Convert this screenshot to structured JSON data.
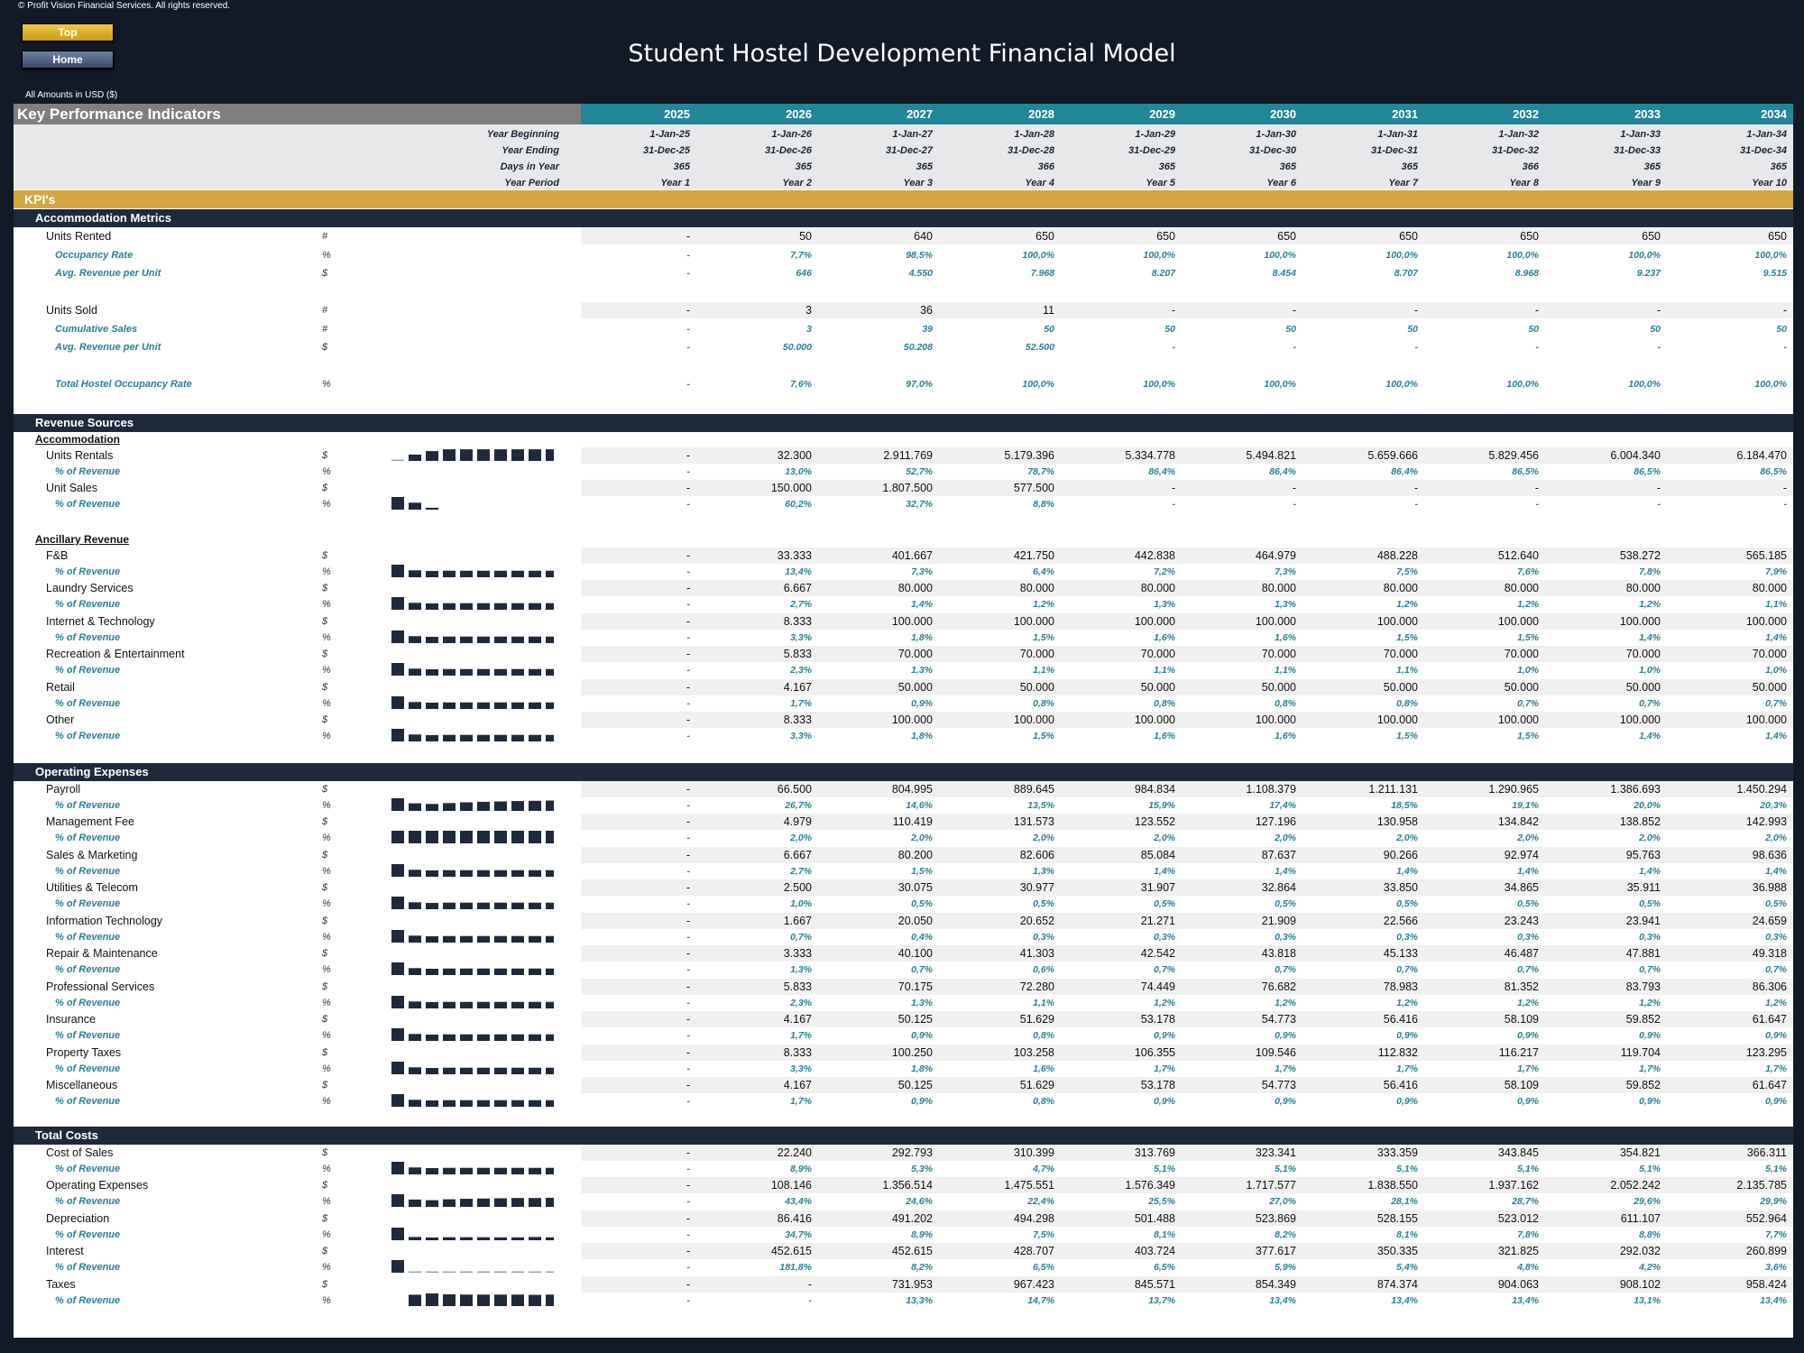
{
  "copyright": "© Profit Vision Financial Services. All rights reserved.",
  "nav": {
    "top_label": "Top",
    "home_label": "Home"
  },
  "title": "Student Hostel Development Financial Model",
  "amounts_note": "All Amounts in  USD ($)",
  "header": {
    "title": "Key Performance Indicators",
    "years": [
      "2025",
      "2026",
      "2027",
      "2028",
      "2029",
      "2030",
      "2031",
      "2032",
      "2033",
      "2034"
    ]
  },
  "info_rows": [
    {
      "label": "Year Beginning",
      "values": [
        "1-Jan-25",
        "1-Jan-26",
        "1-Jan-27",
        "1-Jan-28",
        "1-Jan-29",
        "1-Jan-30",
        "1-Jan-31",
        "1-Jan-32",
        "1-Jan-33",
        "1-Jan-34"
      ]
    },
    {
      "label": "Year Ending",
      "values": [
        "31-Dec-25",
        "31-Dec-26",
        "31-Dec-27",
        "31-Dec-28",
        "31-Dec-29",
        "31-Dec-30",
        "31-Dec-31",
        "31-Dec-32",
        "31-Dec-33",
        "31-Dec-34"
      ]
    },
    {
      "label": "Days in Year",
      "values": [
        "365",
        "365",
        "365",
        "366",
        "365",
        "365",
        "365",
        "366",
        "365",
        "365"
      ]
    },
    {
      "label": "Year Period",
      "values": [
        "Year 1",
        "Year 2",
        "Year 3",
        "Year 4",
        "Year 5",
        "Year 6",
        "Year 7",
        "Year 8",
        "Year 9",
        "Year 10"
      ]
    }
  ],
  "kpi_band": "KPI's",
  "items": [
    {
      "kind": "section",
      "top": 232,
      "text": "Accommodation Metrics"
    },
    {
      "kind": "main",
      "top": 253,
      "label": "Units Rented",
      "unit": "#",
      "values": [
        "-",
        "50",
        "640",
        "650",
        "650",
        "650",
        "650",
        "650",
        "650",
        "650"
      ]
    },
    {
      "kind": "sub",
      "top": 274,
      "label": "Occupancy Rate",
      "unit": "%",
      "values": [
        "-",
        "7,7%",
        "98,5%",
        "100,0%",
        "100,0%",
        "100,0%",
        "100,0%",
        "100,0%",
        "100,0%",
        "100,0%"
      ]
    },
    {
      "kind": "sub",
      "top": 294,
      "label": "Avg. Revenue per Unit",
      "unit": "$",
      "values": [
        "-",
        "646",
        "4.550",
        "7.968",
        "8.207",
        "8.454",
        "8.707",
        "8.968",
        "9.237",
        "9.515"
      ]
    },
    {
      "kind": "main",
      "top": 335,
      "label": "Units Sold",
      "unit": "#",
      "values": [
        "-",
        "3",
        "36",
        "11",
        "-",
        "-",
        "-",
        "-",
        "-",
        "-"
      ]
    },
    {
      "kind": "sub",
      "top": 356,
      "label": "Cumulative Sales",
      "unit": "#",
      "values": [
        "-",
        "3",
        "39",
        "50",
        "50",
        "50",
        "50",
        "50",
        "50",
        "50"
      ]
    },
    {
      "kind": "sub",
      "top": 376,
      "label": "Avg. Revenue per Unit",
      "unit": "$",
      "values": [
        "-",
        "50.000",
        "50.208",
        "52.500",
        "-",
        "-",
        "-",
        "-",
        "-",
        "-"
      ]
    },
    {
      "kind": "sub",
      "top": 417,
      "label": "Total Hostel Occupancy Rate",
      "unit": "%",
      "values": [
        "-",
        "7,6%",
        "97,0%",
        "100,0%",
        "100,0%",
        "100,0%",
        "100,0%",
        "100,0%",
        "100,0%",
        "100,0%"
      ]
    },
    {
      "kind": "section",
      "top": 459,
      "text": "Revenue Sources"
    },
    {
      "kind": "subtitle",
      "top": 479,
      "text": "Accommodation"
    },
    {
      "kind": "main",
      "top": 496,
      "label": "Units Rentals",
      "unit": "$",
      "spark": "b0",
      "values": [
        "-",
        "32.300",
        "2.911.769",
        "5.179.396",
        "5.334.778",
        "5.494.821",
        "5.659.666",
        "5.829.456",
        "6.004.340",
        "6.184.470"
      ]
    },
    {
      "kind": "sub",
      "top": 514,
      "label": "% of Revenue",
      "unit": "%",
      "values": [
        "-",
        "13,0%",
        "52,7%",
        "78,7%",
        "86,4%",
        "86,4%",
        "86,4%",
        "86,5%",
        "86,5%",
        "86,5%"
      ]
    },
    {
      "kind": "main",
      "top": 532,
      "label": "Unit Sales",
      "unit": "$",
      "values": [
        "-",
        "150.000",
        "1.807.500",
        "577.500",
        "-",
        "-",
        "-",
        "-",
        "-",
        "-"
      ]
    },
    {
      "kind": "sub",
      "top": 550,
      "label": "% of Revenue",
      "unit": "%",
      "spark": "b1",
      "values": [
        "-",
        "60,2%",
        "32,7%",
        "8,8%",
        "-",
        "-",
        "-",
        "-",
        "-",
        "-"
      ]
    },
    {
      "kind": "subtitle",
      "top": 590,
      "text": "Ancillary Revenue"
    },
    {
      "kind": "main",
      "top": 607,
      "label": "F&B",
      "unit": "$",
      "values": [
        "-",
        "33.333",
        "401.667",
        "421.750",
        "442.838",
        "464.979",
        "488.228",
        "512.640",
        "538.272",
        "565.185"
      ]
    },
    {
      "kind": "sub",
      "top": 625,
      "label": "% of Revenue",
      "unit": "%",
      "spark": "b2",
      "values": [
        "-",
        "13,4%",
        "7,3%",
        "6,4%",
        "7,2%",
        "7,3%",
        "7,5%",
        "7,6%",
        "7,8%",
        "7,9%"
      ]
    },
    {
      "kind": "main",
      "top": 643,
      "label": "Laundry Services",
      "unit": "$",
      "values": [
        "-",
        "6.667",
        "80.000",
        "80.000",
        "80.000",
        "80.000",
        "80.000",
        "80.000",
        "80.000",
        "80.000"
      ]
    },
    {
      "kind": "sub",
      "top": 661,
      "label": "% of Revenue",
      "unit": "%",
      "spark": "b2",
      "values": [
        "-",
        "2,7%",
        "1,4%",
        "1,2%",
        "1,3%",
        "1,3%",
        "1,2%",
        "1,2%",
        "1,2%",
        "1,1%"
      ]
    },
    {
      "kind": "main",
      "top": 680,
      "label": "Internet & Technology",
      "unit": "$",
      "values": [
        "-",
        "8.333",
        "100.000",
        "100.000",
        "100.000",
        "100.000",
        "100.000",
        "100.000",
        "100.000",
        "100.000"
      ]
    },
    {
      "kind": "sub",
      "top": 698,
      "label": "% of Revenue",
      "unit": "%",
      "spark": "b2",
      "values": [
        "-",
        "3,3%",
        "1,8%",
        "1,5%",
        "1,6%",
        "1,6%",
        "1,5%",
        "1,5%",
        "1,4%",
        "1,4%"
      ]
    },
    {
      "kind": "main",
      "top": 716,
      "label": "Recreation & Entertainment",
      "unit": "$",
      "values": [
        "-",
        "5.833",
        "70.000",
        "70.000",
        "70.000",
        "70.000",
        "70.000",
        "70.000",
        "70.000",
        "70.000"
      ]
    },
    {
      "kind": "sub",
      "top": 734,
      "label": "% of Revenue",
      "unit": "%",
      "spark": "b2",
      "values": [
        "-",
        "2,3%",
        "1,3%",
        "1,1%",
        "1,1%",
        "1,1%",
        "1,1%",
        "1,0%",
        "1,0%",
        "1,0%"
      ]
    },
    {
      "kind": "main",
      "top": 753,
      "label": "Retail",
      "unit": "$",
      "values": [
        "-",
        "4.167",
        "50.000",
        "50.000",
        "50.000",
        "50.000",
        "50.000",
        "50.000",
        "50.000",
        "50.000"
      ]
    },
    {
      "kind": "sub",
      "top": 771,
      "label": "% of Revenue",
      "unit": "%",
      "spark": "b2",
      "values": [
        "-",
        "1,7%",
        "0,9%",
        "0,8%",
        "0,8%",
        "0,8%",
        "0,8%",
        "0,7%",
        "0,7%",
        "0,7%"
      ]
    },
    {
      "kind": "main",
      "top": 789,
      "label": "Other",
      "unit": "$",
      "values": [
        "-",
        "8.333",
        "100.000",
        "100.000",
        "100.000",
        "100.000",
        "100.000",
        "100.000",
        "100.000",
        "100.000"
      ]
    },
    {
      "kind": "sub",
      "top": 807,
      "label": "% of Revenue",
      "unit": "%",
      "spark": "b2",
      "values": [
        "-",
        "3,3%",
        "1,8%",
        "1,5%",
        "1,6%",
        "1,6%",
        "1,5%",
        "1,5%",
        "1,4%",
        "1,4%"
      ]
    },
    {
      "kind": "section",
      "top": 846,
      "text": "Operating Expenses"
    },
    {
      "kind": "main",
      "top": 866,
      "label": "Payroll",
      "unit": "$",
      "values": [
        "-",
        "66.500",
        "804.995",
        "889.645",
        "984.834",
        "1.108.379",
        "1.211.131",
        "1.290.965",
        "1.386.693",
        "1.450.294"
      ]
    },
    {
      "kind": "sub",
      "top": 884,
      "label": "% of Revenue",
      "unit": "%",
      "spark": "b3",
      "values": [
        "-",
        "26,7%",
        "14,6%",
        "13,5%",
        "15,9%",
        "17,4%",
        "18,5%",
        "19,1%",
        "20,0%",
        "20,3%"
      ]
    },
    {
      "kind": "main",
      "top": 902,
      "label": "Management Fee",
      "unit": "$",
      "values": [
        "-",
        "4.979",
        "110.419",
        "131.573",
        "123.552",
        "127.196",
        "130.958",
        "134.842",
        "138.852",
        "142.993"
      ]
    },
    {
      "kind": "sub",
      "top": 920,
      "label": "% of Revenue",
      "unit": "%",
      "spark": "b4",
      "values": [
        "-",
        "2,0%",
        "2,0%",
        "2,0%",
        "2,0%",
        "2,0%",
        "2,0%",
        "2,0%",
        "2,0%",
        "2,0%"
      ]
    },
    {
      "kind": "main",
      "top": 939,
      "label": "Sales & Marketing",
      "unit": "$",
      "values": [
        "-",
        "6.667",
        "80.200",
        "82.606",
        "85.084",
        "87.637",
        "90.266",
        "92.974",
        "95.763",
        "98.636"
      ]
    },
    {
      "kind": "sub",
      "top": 957,
      "label": "% of Revenue",
      "unit": "%",
      "spark": "b2",
      "values": [
        "-",
        "2,7%",
        "1,5%",
        "1,3%",
        "1,4%",
        "1,4%",
        "1,4%",
        "1,4%",
        "1,4%",
        "1,4%"
      ]
    },
    {
      "kind": "main",
      "top": 975,
      "label": "Utilities & Telecom",
      "unit": "$",
      "values": [
        "-",
        "2.500",
        "30.075",
        "30.977",
        "31.907",
        "32.864",
        "33.850",
        "34.865",
        "35.911",
        "36.988"
      ]
    },
    {
      "kind": "sub",
      "top": 993,
      "label": "% of Revenue",
      "unit": "%",
      "spark": "b2",
      "values": [
        "-",
        "1,0%",
        "0,5%",
        "0,5%",
        "0,5%",
        "0,5%",
        "0,5%",
        "0,5%",
        "0,5%",
        "0,5%"
      ]
    },
    {
      "kind": "main",
      "top": 1012,
      "label": "Information Technology",
      "unit": "$",
      "values": [
        "-",
        "1.667",
        "20.050",
        "20.652",
        "21.271",
        "21.909",
        "22.566",
        "23.243",
        "23.941",
        "24.659"
      ]
    },
    {
      "kind": "sub",
      "top": 1030,
      "label": "% of Revenue",
      "unit": "%",
      "spark": "b2",
      "values": [
        "-",
        "0,7%",
        "0,4%",
        "0,3%",
        "0,3%",
        "0,3%",
        "0,3%",
        "0,3%",
        "0,3%",
        "0,3%"
      ]
    },
    {
      "kind": "main",
      "top": 1048,
      "label": "Repair & Maintenance",
      "unit": "$",
      "values": [
        "-",
        "3.333",
        "40.100",
        "41.303",
        "42.542",
        "43.818",
        "45.133",
        "46.487",
        "47.881",
        "49.318"
      ]
    },
    {
      "kind": "sub",
      "top": 1066,
      "label": "% of Revenue",
      "unit": "%",
      "spark": "b2",
      "values": [
        "-",
        "1,3%",
        "0,7%",
        "0,6%",
        "0,7%",
        "0,7%",
        "0,7%",
        "0,7%",
        "0,7%",
        "0,7%"
      ]
    },
    {
      "kind": "main",
      "top": 1085,
      "label": "Professional Services",
      "unit": "$",
      "values": [
        "-",
        "5.833",
        "70.175",
        "72.280",
        "74.449",
        "76.682",
        "78.983",
        "81.352",
        "83.793",
        "86.306"
      ]
    },
    {
      "kind": "sub",
      "top": 1103,
      "label": "% of Revenue",
      "unit": "%",
      "spark": "b2",
      "values": [
        "-",
        "2,3%",
        "1,3%",
        "1,1%",
        "1,2%",
        "1,2%",
        "1,2%",
        "1,2%",
        "1,2%",
        "1,2%"
      ]
    },
    {
      "kind": "main",
      "top": 1121,
      "label": "Insurance",
      "unit": "$",
      "values": [
        "-",
        "4.167",
        "50.125",
        "51.629",
        "53.178",
        "54.773",
        "56.416",
        "58.109",
        "59.852",
        "61.647"
      ]
    },
    {
      "kind": "sub",
      "top": 1139,
      "label": "% of Revenue",
      "unit": "%",
      "spark": "b2",
      "values": [
        "-",
        "1,7%",
        "0,9%",
        "0,8%",
        "0,9%",
        "0,9%",
        "0,9%",
        "0,9%",
        "0,9%",
        "0,9%"
      ]
    },
    {
      "kind": "main",
      "top": 1158,
      "label": "Property Taxes",
      "unit": "$",
      "values": [
        "-",
        "8.333",
        "100.250",
        "103.258",
        "106.355",
        "109.546",
        "112.832",
        "116.217",
        "119.704",
        "123.295"
      ]
    },
    {
      "kind": "sub",
      "top": 1176,
      "label": "% of Revenue",
      "unit": "%",
      "spark": "b2",
      "values": [
        "-",
        "3,3%",
        "1,8%",
        "1,6%",
        "1,7%",
        "1,7%",
        "1,7%",
        "1,7%",
        "1,7%",
        "1,7%"
      ]
    },
    {
      "kind": "main",
      "top": 1194,
      "label": "Miscellaneous",
      "unit": "$",
      "values": [
        "-",
        "4.167",
        "50.125",
        "51.629",
        "53.178",
        "54.773",
        "56.416",
        "58.109",
        "59.852",
        "61.647"
      ]
    },
    {
      "kind": "sub",
      "top": 1212,
      "label": "% of Revenue",
      "unit": "%",
      "spark": "b2",
      "values": [
        "-",
        "1,7%",
        "0,9%",
        "0,8%",
        "0,9%",
        "0,9%",
        "0,9%",
        "0,9%",
        "0,9%",
        "0,9%"
      ]
    },
    {
      "kind": "section",
      "top": 1249,
      "text": "Total Costs"
    },
    {
      "kind": "main",
      "top": 1269,
      "label": "Cost of Sales",
      "unit": "$",
      "values": [
        "-",
        "22.240",
        "292.793",
        "310.399",
        "313.769",
        "323.341",
        "333.359",
        "343.845",
        "354.821",
        "366.311"
      ]
    },
    {
      "kind": "sub",
      "top": 1287,
      "label": "% of Revenue",
      "unit": "%",
      "spark": "b2",
      "values": [
        "-",
        "8,9%",
        "5,3%",
        "4,7%",
        "5,1%",
        "5,1%",
        "5,1%",
        "5,1%",
        "5,1%",
        "5,1%"
      ]
    },
    {
      "kind": "main",
      "top": 1305,
      "label": "Operating Expenses",
      "unit": "$",
      "values": [
        "-",
        "108.146",
        "1.356.514",
        "1.475.551",
        "1.576.349",
        "1.717.577",
        "1.838.550",
        "1.937.162",
        "2.052.242",
        "2.135.785"
      ]
    },
    {
      "kind": "sub",
      "top": 1323,
      "label": "% of Revenue",
      "unit": "%",
      "spark": "b5",
      "values": [
        "-",
        "43,4%",
        "24,6%",
        "22,4%",
        "25,5%",
        "27,0%",
        "28,1%",
        "28,7%",
        "29,6%",
        "29,9%"
      ]
    },
    {
      "kind": "main",
      "top": 1342,
      "label": "Depreciation",
      "unit": "$",
      "values": [
        "-",
        "86.416",
        "491.202",
        "494.298",
        "501.488",
        "523.869",
        "528.155",
        "523.012",
        "611.107",
        "552.964"
      ]
    },
    {
      "kind": "sub",
      "top": 1360,
      "label": "% of Revenue",
      "unit": "%",
      "spark": "b6",
      "values": [
        "-",
        "34,7%",
        "8,9%",
        "7,5%",
        "8,1%",
        "8,2%",
        "8,1%",
        "7,8%",
        "8,8%",
        "7,7%"
      ]
    },
    {
      "kind": "main",
      "top": 1378,
      "label": "Interest",
      "unit": "$",
      "values": [
        "-",
        "452.615",
        "452.615",
        "428.707",
        "403.724",
        "377.617",
        "350.335",
        "321.825",
        "292.032",
        "260.899"
      ]
    },
    {
      "kind": "sub",
      "top": 1396,
      "label": "% of Revenue",
      "unit": "%",
      "spark": "b7",
      "values": [
        "-",
        "181,8%",
        "8,2%",
        "6,5%",
        "6,5%",
        "5,9%",
        "5,4%",
        "4,8%",
        "4,2%",
        "3,6%"
      ]
    },
    {
      "kind": "main",
      "top": 1415,
      "label": "Taxes",
      "unit": "$",
      "values": [
        "-",
        "-",
        "731.953",
        "967.423",
        "845.571",
        "854.349",
        "874.374",
        "904.063",
        "908.102",
        "958.424"
      ]
    },
    {
      "kind": "sub",
      "top": 1433,
      "label": "% of Revenue",
      "unit": "%",
      "spark": "b8",
      "values": [
        "-",
        "-",
        "13,3%",
        "14,7%",
        "13,7%",
        "13,4%",
        "13,4%",
        "13,4%",
        "13,1%",
        "13,4%"
      ]
    }
  ],
  "sparklines": {
    "b0": [
      0.05,
      0.5,
      0.78,
      0.92,
      0.92,
      0.92,
      0.92,
      0.92,
      0.92,
      0.92
    ],
    "b1": [
      1,
      0.55,
      0.15,
      0,
      0,
      0,
      0,
      0,
      0,
      0
    ],
    "b2": [
      1,
      0.55,
      0.5,
      0.52,
      0.52,
      0.52,
      0.52,
      0.52,
      0.52,
      0.52
    ],
    "b3": [
      1,
      0.6,
      0.55,
      0.62,
      0.68,
      0.72,
      0.75,
      0.78,
      0.8,
      0.82
    ],
    "b4": [
      1,
      1,
      1,
      1,
      1,
      1,
      1,
      1,
      1,
      1
    ],
    "b5": [
      1,
      0.58,
      0.53,
      0.6,
      0.64,
      0.66,
      0.68,
      0.7,
      0.7,
      0.72
    ],
    "b6": [
      1,
      0.26,
      0.22,
      0.24,
      0.24,
      0.24,
      0.23,
      0.23,
      0.26,
      0.23
    ],
    "b7": [
      1,
      0.05,
      0.04,
      0.04,
      0.03,
      0.03,
      0.03,
      0.03,
      0.02,
      0.02
    ],
    "b8": [
      0,
      0.9,
      1,
      0.93,
      0.91,
      0.91,
      0.91,
      0.91,
      0.89,
      0.91
    ]
  },
  "colors": {
    "background": "#131a27",
    "header_teal": "#21869a",
    "kpi_gold": "#d4a640",
    "section_navy": "#1e2a3c",
    "accent_teal_text": "#2a7f95",
    "sparkline": "#1e2a3c"
  }
}
